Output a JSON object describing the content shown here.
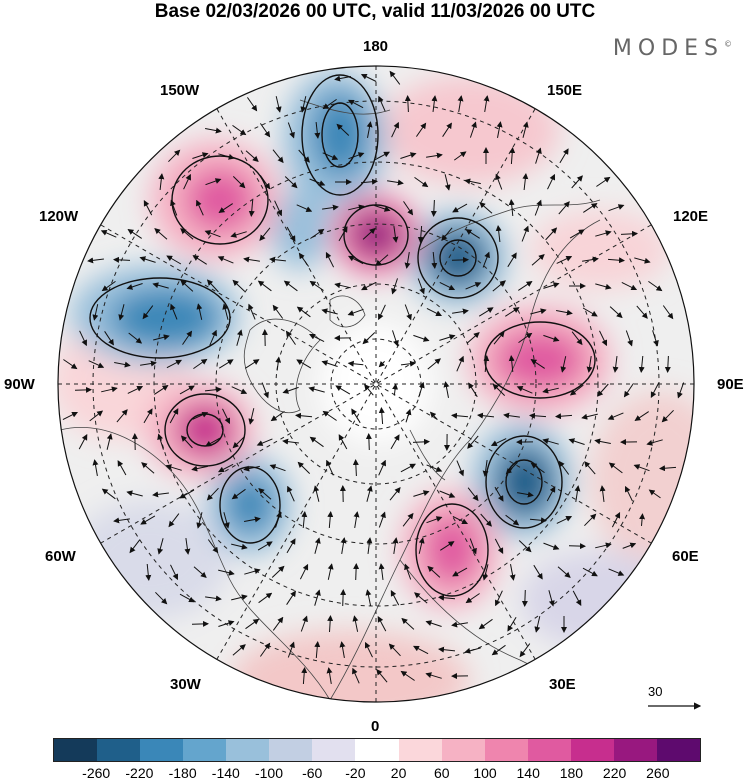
{
  "header": {
    "title": "Base 02/03/2026 00 UTC, valid 11/03/2026 00 UTC",
    "brand": "MODES",
    "brand_mark": "©"
  },
  "map": {
    "longitude_labels": {
      "top": "180",
      "bottom": "0",
      "left": "90W",
      "right": "90E",
      "nw_upper": "150W",
      "nw_lower": "120W",
      "ne_upper": "150E",
      "ne_lower": "120E",
      "sw_upper": "60W",
      "sw_lower": "30W",
      "se_upper": "60E",
      "se_lower": "30E"
    },
    "reference_vector": "30"
  },
  "colorbar": {
    "colors": [
      "#143a5a",
      "#1f5f8a",
      "#3a87b8",
      "#64a5cd",
      "#99c0db",
      "#c2cfe3",
      "#e2e0ef",
      "#ffffff",
      "#fbd7db",
      "#f6b2c4",
      "#ef85ae",
      "#e05aa0",
      "#c72e8e",
      "#98187f",
      "#5e0a6e"
    ],
    "tick_labels": [
      "-260",
      "-220",
      "-180",
      "-140",
      "-100",
      "-60",
      "-20",
      "20",
      "60",
      "100",
      "140",
      "180",
      "220",
      "260"
    ]
  }
}
